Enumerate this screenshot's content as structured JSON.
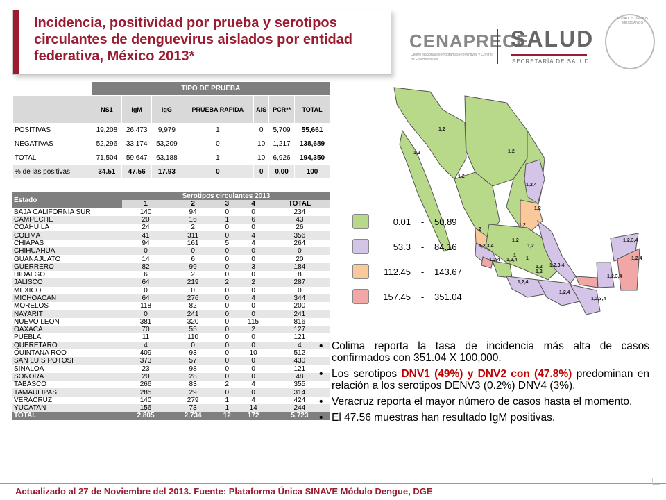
{
  "title": "Incidencia, positividad por prueba y serotipos circulantes de denguevirus aislados por entidad federativa, México 2013*",
  "logos": {
    "cenaprece": "CENAPRECE",
    "cenaprece_sub": "Centro Nacional de Programas Preventivos y Control de Enfermedades",
    "salud": "SALUD",
    "salud_sub": "SECRETARÍA DE SALUD",
    "seal_text": "ESTADOS UNIDOS MEXICANOS"
  },
  "test_table": {
    "group_header": "TIPO DE PRUEBA",
    "columns": [
      "NS1",
      "IgM",
      "IgG",
      "PRUEBA RAPIDA",
      "AIS",
      "PCR**",
      "TOTAL"
    ],
    "rows": [
      {
        "label": "POSITIVAS",
        "values": [
          "19,208",
          "26,473",
          "9,979",
          "1",
          "0",
          "5,709",
          "55,661"
        ]
      },
      {
        "label": "NEGATIVAS",
        "values": [
          "52,296",
          "33,174",
          "53,209",
          "0",
          "10",
          "1,217",
          "138,689"
        ]
      },
      {
        "label": "TOTAL",
        "values": [
          "71,504",
          "59,647",
          "63,188",
          "1",
          "10",
          "6,926",
          "194,350"
        ]
      },
      {
        "label": "% de las positivas",
        "values": [
          "34.51",
          "47.56",
          "17.93",
          "0",
          "0",
          "0.00",
          "100"
        ]
      }
    ]
  },
  "sero_table": {
    "state_header": "Estado",
    "group_header": "Serotipos circulantes 2013",
    "columns": [
      "1",
      "2",
      "3",
      "4",
      "TOTAL"
    ],
    "rows": [
      {
        "state": "BAJA CALIFORNIA SUR",
        "values": [
          "140",
          "94",
          "0",
          "0",
          "234"
        ]
      },
      {
        "state": "CAMPECHE",
        "values": [
          "20",
          "16",
          "1",
          "6",
          "43"
        ]
      },
      {
        "state": "COAHUILA",
        "values": [
          "24",
          "2",
          "0",
          "0",
          "26"
        ]
      },
      {
        "state": "COLIMA",
        "values": [
          "41",
          "311",
          "0",
          "4",
          "356"
        ]
      },
      {
        "state": "CHIAPAS",
        "values": [
          "94",
          "161",
          "5",
          "4",
          "264"
        ]
      },
      {
        "state": "CHIHUAHUA",
        "values": [
          "0",
          "0",
          "0",
          "0",
          "0"
        ]
      },
      {
        "state": "GUANAJUATO",
        "values": [
          "14",
          "6",
          "0",
          "0",
          "20"
        ]
      },
      {
        "state": "GUERRERO",
        "values": [
          "82",
          "99",
          "0",
          "3",
          "184"
        ]
      },
      {
        "state": "HIDALGO",
        "values": [
          "6",
          "2",
          "0",
          "0",
          "8"
        ]
      },
      {
        "state": "JALISCO",
        "values": [
          "64",
          "219",
          "2",
          "2",
          "287"
        ]
      },
      {
        "state": "MEXICO",
        "values": [
          "0",
          "0",
          "0",
          "0",
          "0"
        ]
      },
      {
        "state": "MICHOACAN",
        "values": [
          "64",
          "276",
          "0",
          "4",
          "344"
        ]
      },
      {
        "state": "MORELOS",
        "values": [
          "118",
          "82",
          "0",
          "0",
          "200"
        ]
      },
      {
        "state": "NAYARIT",
        "values": [
          "0",
          "241",
          "0",
          "0",
          "241"
        ]
      },
      {
        "state": "NUEVO LEON",
        "values": [
          "381",
          "320",
          "0",
          "115",
          "816"
        ]
      },
      {
        "state": "OAXACA",
        "values": [
          "70",
          "55",
          "0",
          "2",
          "127"
        ]
      },
      {
        "state": "PUEBLA",
        "values": [
          "11",
          "110",
          "0",
          "0",
          "121"
        ]
      },
      {
        "state": "QUERETARO",
        "values": [
          "4",
          "0",
          "0",
          "0",
          "4"
        ]
      },
      {
        "state": "QUINTANA ROO",
        "values": [
          "409",
          "93",
          "0",
          "10",
          "512"
        ]
      },
      {
        "state": "SAN LUIS POTOSI",
        "values": [
          "373",
          "57",
          "0",
          "0",
          "430"
        ]
      },
      {
        "state": "SINALOA",
        "values": [
          "23",
          "98",
          "0",
          "0",
          "121"
        ]
      },
      {
        "state": "SONORA",
        "values": [
          "20",
          "28",
          "0",
          "0",
          "48"
        ]
      },
      {
        "state": "TABASCO",
        "values": [
          "266",
          "83",
          "2",
          "4",
          "355"
        ]
      },
      {
        "state": "TAMAULIPAS",
        "values": [
          "285",
          "29",
          "0",
          "0",
          "314"
        ]
      },
      {
        "state": "VERACRUZ",
        "values": [
          "140",
          "279",
          "1",
          "4",
          "424"
        ]
      },
      {
        "state": "YUCATAN",
        "values": [
          "156",
          "73",
          "1",
          "14",
          "244"
        ]
      }
    ],
    "total": {
      "state": "TOTAL",
      "values": [
        "2,805",
        "2,734",
        "12",
        "172",
        "5,723"
      ]
    }
  },
  "legend": [
    {
      "min": "0.01",
      "sep": "-",
      "max": "50.89",
      "color": "#b8d98a"
    },
    {
      "min": "53.3",
      "sep": "-",
      "max": "84.16",
      "color": "#d4c4e8"
    },
    {
      "min": "112.45",
      "sep": "-",
      "max": "143.67",
      "color": "#f9c89b"
    },
    {
      "min": "157.45",
      "sep": "-",
      "max": "351.04",
      "color": "#f2a7a7"
    }
  ],
  "map_labels": [
    "1,2",
    "1,2",
    "1,2",
    "1,2",
    "1,2,4",
    "1,2",
    "2",
    "1,2",
    "1,2,3,4",
    "1,2",
    "1",
    "1,2",
    "1,2,4",
    "1,2,4",
    "1",
    "1,2",
    "1,2,3,4",
    "1,2",
    "1,2,3,4",
    "1,2,4",
    "1,2,3,4",
    "1,2,4",
    "1,2,4",
    "1,2,3,4"
  ],
  "bullets": [
    {
      "text": "Colima reporta la tasa de incidencia más alta de casos confirmados con 351.04 X 100,000."
    },
    {
      "pre": "Los serotipos ",
      "red": "DNV1 (49%) y DNV2 con (47.8%)",
      "post": " predominan en relación a los serotipos DENV3 (0.2%) DNV4 (3%)."
    },
    {
      "text": "Veracruz reporta el mayor número de casos hasta el momento."
    },
    {
      "text": "El 47.56 muestras han resultado IgM positivas."
    }
  ],
  "footer": "Actualizado al 27 de Noviembre del 2013. Fuente: Plataforma Única SINAVE Módulo Dengue, DGE"
}
